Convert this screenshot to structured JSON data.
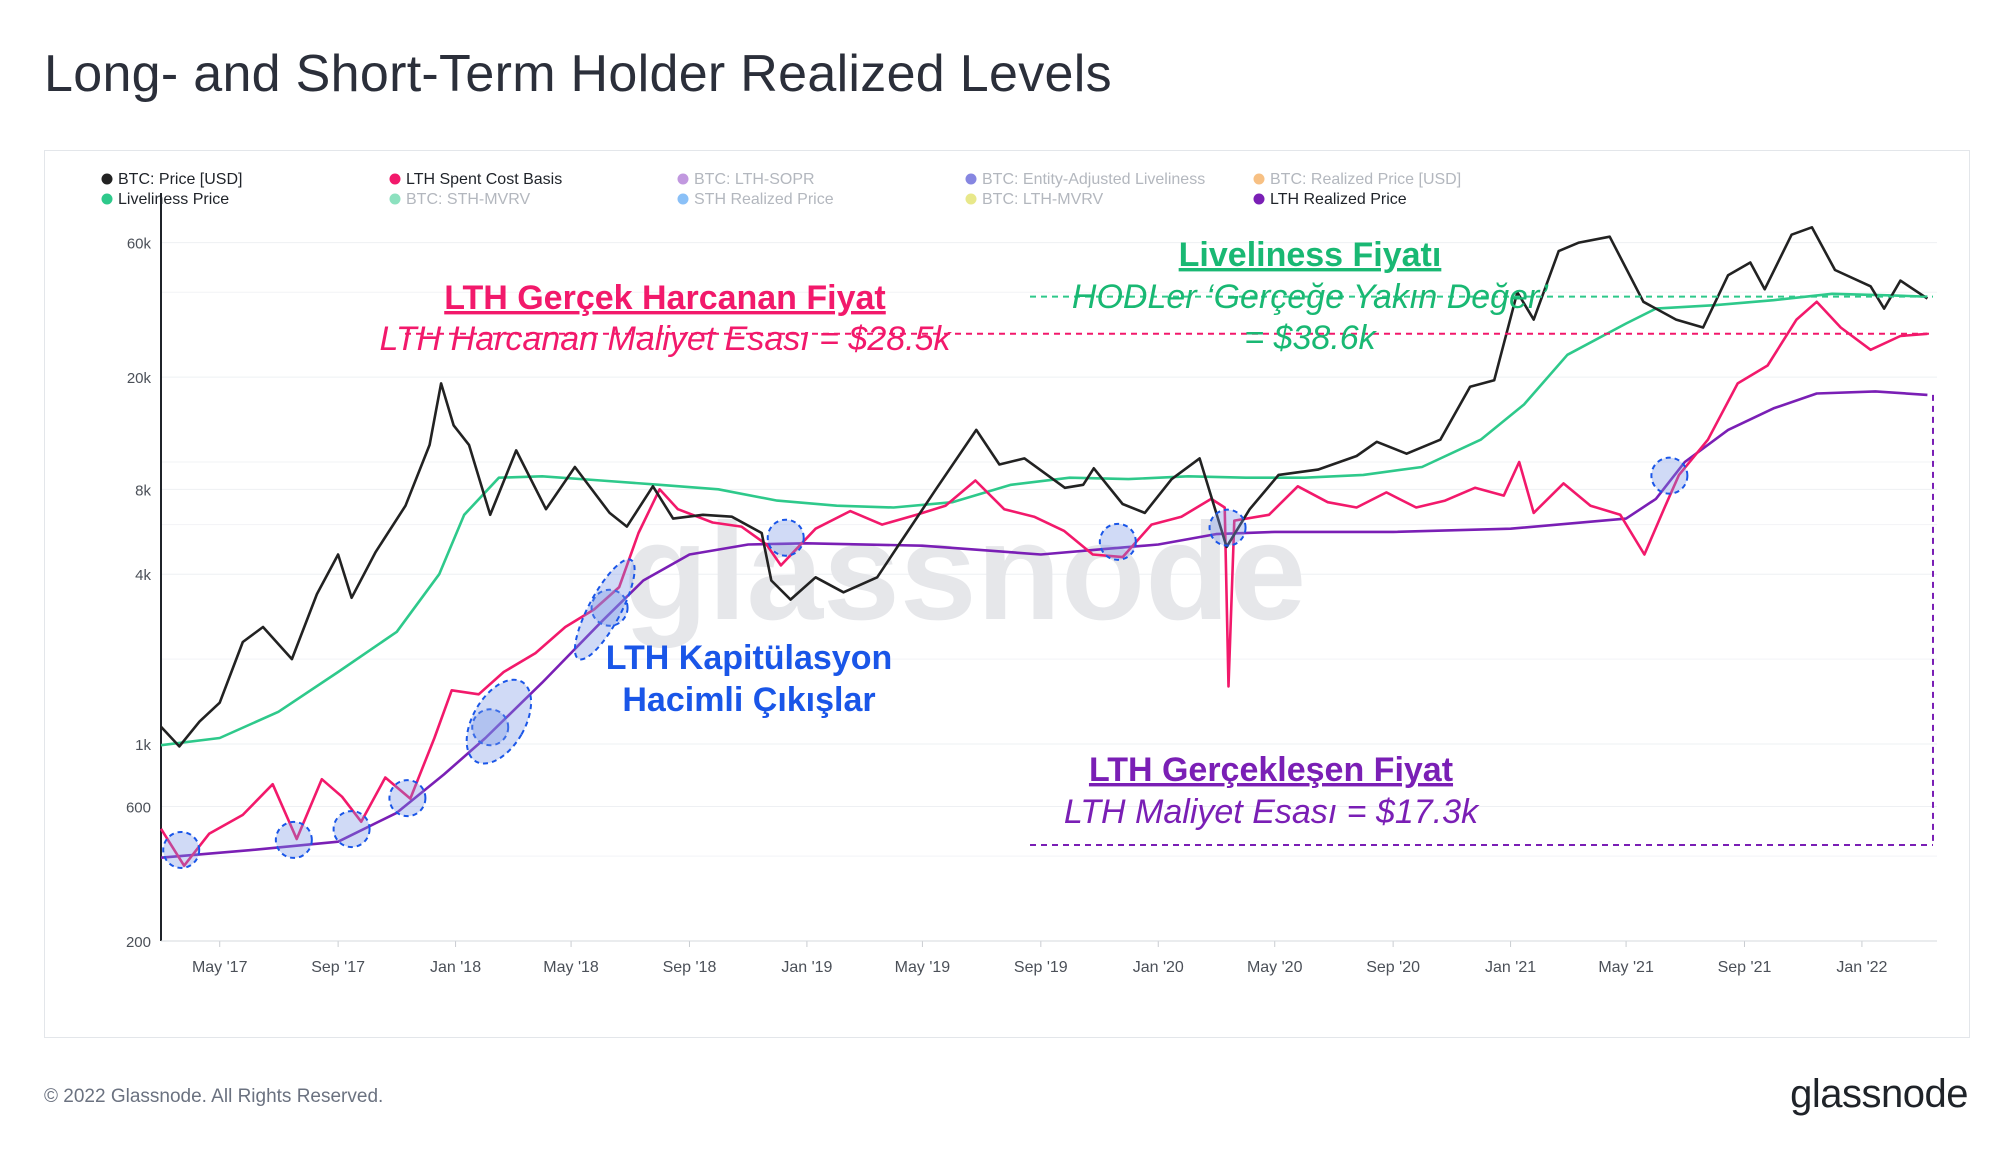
{
  "title": "Long- and Short-Term Holder Realized Levels",
  "footer": "© 2022 Glassnode. All Rights Reserved.",
  "brand": "glassnode",
  "watermark": "glassnode",
  "legend": [
    {
      "label": "BTC: Price [USD]",
      "color": "#222222",
      "active": true
    },
    {
      "label": "LTH Spent Cost Basis",
      "color": "#f2196b",
      "active": true
    },
    {
      "label": "BTC: LTH-SOPR",
      "color": "#8e44c4",
      "active": false
    },
    {
      "label": "BTC: Entity-Adjusted Liveliness",
      "color": "#2323c8",
      "active": false
    },
    {
      "label": "BTC: Realized Price [USD]",
      "color": "#f08c1e",
      "active": false
    },
    {
      "label": "Liveliness Price",
      "color": "#2ec98b",
      "active": true
    },
    {
      "label": "BTC: STH-MVRV",
      "color": "#2ec98b",
      "active": false
    },
    {
      "label": "STH Realized Price",
      "color": "#2a8cf0",
      "active": false
    },
    {
      "label": "BTC: LTH-MVRV",
      "color": "#d6d62a",
      "active": false
    },
    {
      "label": "LTH Realized Price",
      "color": "#7a1fb5",
      "active": true
    }
  ],
  "annotations": {
    "lth_spent_title": "LTH Gerçek Harcanan Fiyat",
    "lth_spent_sub": "LTH Harcanan Maliyet Esası = $28.5k",
    "liveliness_title": "Liveliness Fiyatı",
    "liveliness_sub1": "HODLer ‘Gerçeğe Yakın Değer’",
    "liveliness_sub2": "= $38.6k",
    "capitulation_line1": "LTH Kapitülasyon",
    "capitulation_line2": "Hacimli Çıkışlar",
    "lth_realized_title": "LTH Gerçekleşen Fiyat",
    "lth_realized_sub": "LTH Maliyet Esası = $17.3k"
  },
  "colors": {
    "price": "#222222",
    "lth_spent": "#f2196b",
    "liveliness": "#2ec98b",
    "lth_realized": "#7a1fb5",
    "capitulation": "#1a56e8",
    "annotation_green": "#19b873"
  },
  "chart_data": {
    "type": "line",
    "y_scale": "log",
    "ylim": [
      200,
      90000
    ],
    "xlim": [
      "2017-03-01",
      "2022-03-20"
    ],
    "y_ticks": [
      {
        "value": 200,
        "label": "200"
      },
      {
        "value": 600,
        "label": "600"
      },
      {
        "value": 1000,
        "label": "1k"
      },
      {
        "value": 4000,
        "label": "4k"
      },
      {
        "value": 8000,
        "label": "8k"
      },
      {
        "value": 20000,
        "label": "20k"
      },
      {
        "value": 60000,
        "label": "60k"
      }
    ],
    "x_ticks": [
      {
        "date": "2017-05-01",
        "label": "May '17"
      },
      {
        "date": "2017-09-01",
        "label": "Sep '17"
      },
      {
        "date": "2018-01-01",
        "label": "Jan '18"
      },
      {
        "date": "2018-05-01",
        "label": "May '18"
      },
      {
        "date": "2018-09-01",
        "label": "Sep '18"
      },
      {
        "date": "2019-01-01",
        "label": "Jan '19"
      },
      {
        "date": "2019-05-01",
        "label": "May '19"
      },
      {
        "date": "2019-09-01",
        "label": "Sep '19"
      },
      {
        "date": "2020-01-01",
        "label": "Jan '20"
      },
      {
        "date": "2020-05-01",
        "label": "May '20"
      },
      {
        "date": "2020-09-01",
        "label": "Sep '20"
      },
      {
        "date": "2021-01-01",
        "label": "Jan '21"
      },
      {
        "date": "2021-05-01",
        "label": "May '21"
      },
      {
        "date": "2021-09-01",
        "label": "Sep '21"
      },
      {
        "date": "2022-01-01",
        "label": "Jan '22"
      }
    ],
    "series": [
      {
        "name": "BTC: Price [USD]",
        "key": "price",
        "points": [
          [
            "2017-03-01",
            1150
          ],
          [
            "2017-03-20",
            980
          ],
          [
            "2017-04-10",
            1200
          ],
          [
            "2017-05-01",
            1400
          ],
          [
            "2017-05-25",
            2300
          ],
          [
            "2017-06-15",
            2600
          ],
          [
            "2017-07-15",
            2000
          ],
          [
            "2017-08-10",
            3400
          ],
          [
            "2017-09-01",
            4700
          ],
          [
            "2017-09-15",
            3300
          ],
          [
            "2017-10-10",
            4800
          ],
          [
            "2017-11-10",
            7000
          ],
          [
            "2017-12-05",
            11500
          ],
          [
            "2017-12-17",
            19000
          ],
          [
            "2017-12-30",
            13500
          ],
          [
            "2018-01-15",
            11500
          ],
          [
            "2018-02-06",
            6500
          ],
          [
            "2018-03-05",
            11000
          ],
          [
            "2018-04-05",
            6800
          ],
          [
            "2018-05-05",
            9600
          ],
          [
            "2018-06-10",
            6600
          ],
          [
            "2018-06-28",
            5900
          ],
          [
            "2018-07-25",
            8200
          ],
          [
            "2018-08-15",
            6300
          ],
          [
            "2018-09-15",
            6500
          ],
          [
            "2018-10-15",
            6400
          ],
          [
            "2018-11-15",
            5600
          ],
          [
            "2018-11-25",
            3800
          ],
          [
            "2018-12-15",
            3250
          ],
          [
            "2019-01-10",
            3900
          ],
          [
            "2019-02-08",
            3450
          ],
          [
            "2019-03-15",
            3900
          ],
          [
            "2019-04-05",
            5000
          ],
          [
            "2019-05-15",
            8000
          ],
          [
            "2019-06-26",
            13000
          ],
          [
            "2019-07-20",
            9800
          ],
          [
            "2019-08-15",
            10300
          ],
          [
            "2019-09-26",
            8100
          ],
          [
            "2019-10-15",
            8300
          ],
          [
            "2019-10-26",
            9500
          ],
          [
            "2019-11-25",
            7100
          ],
          [
            "2019-12-18",
            6600
          ],
          [
            "2020-01-15",
            8700
          ],
          [
            "2020-02-13",
            10300
          ],
          [
            "2020-03-12",
            5000
          ],
          [
            "2020-04-05",
            6800
          ],
          [
            "2020-05-05",
            9000
          ],
          [
            "2020-06-15",
            9400
          ],
          [
            "2020-07-25",
            10500
          ],
          [
            "2020-08-15",
            11800
          ],
          [
            "2020-09-15",
            10700
          ],
          [
            "2020-10-20",
            12000
          ],
          [
            "2020-11-20",
            18500
          ],
          [
            "2020-12-15",
            19500
          ],
          [
            "2021-01-08",
            40000
          ],
          [
            "2021-01-25",
            32000
          ],
          [
            "2021-02-20",
            56000
          ],
          [
            "2021-03-13",
            60000
          ],
          [
            "2021-04-14",
            63000
          ],
          [
            "2021-05-19",
            37000
          ],
          [
            "2021-06-22",
            32000
          ],
          [
            "2021-07-20",
            30000
          ],
          [
            "2021-08-15",
            46000
          ],
          [
            "2021-09-07",
            51000
          ],
          [
            "2021-09-22",
            41000
          ],
          [
            "2021-10-20",
            64000
          ],
          [
            "2021-11-10",
            68000
          ],
          [
            "2021-12-04",
            48000
          ],
          [
            "2022-01-10",
            42000
          ],
          [
            "2022-01-24",
            35000
          ],
          [
            "2022-02-10",
            44000
          ],
          [
            "2022-03-10",
            38000
          ]
        ]
      },
      {
        "name": "LTH Spent Cost Basis",
        "key": "lth_spent",
        "points": [
          [
            "2017-03-01",
            500
          ],
          [
            "2017-03-25",
            370
          ],
          [
            "2017-04-20",
            480
          ],
          [
            "2017-05-25",
            560
          ],
          [
            "2017-06-25",
            720
          ],
          [
            "2017-07-20",
            460
          ],
          [
            "2017-08-15",
            750
          ],
          [
            "2017-09-05",
            650
          ],
          [
            "2017-09-25",
            530
          ],
          [
            "2017-10-20",
            760
          ],
          [
            "2017-11-15",
            640
          ],
          [
            "2017-12-10",
            1050
          ],
          [
            "2017-12-28",
            1550
          ],
          [
            "2018-01-25",
            1500
          ],
          [
            "2018-02-20",
            1800
          ],
          [
            "2018-03-25",
            2100
          ],
          [
            "2018-04-25",
            2600
          ],
          [
            "2018-05-25",
            3000
          ],
          [
            "2018-06-20",
            3600
          ],
          [
            "2018-07-10",
            5600
          ],
          [
            "2018-08-01",
            8000
          ],
          [
            "2018-08-20",
            6800
          ],
          [
            "2018-09-25",
            6100
          ],
          [
            "2018-10-25",
            5900
          ],
          [
            "2018-11-20",
            5100
          ],
          [
            "2018-12-05",
            4300
          ],
          [
            "2019-01-10",
            5800
          ],
          [
            "2019-02-15",
            6700
          ],
          [
            "2019-03-20",
            6000
          ],
          [
            "2019-04-25",
            6500
          ],
          [
            "2019-05-25",
            7000
          ],
          [
            "2019-06-25",
            8600
          ],
          [
            "2019-07-25",
            6800
          ],
          [
            "2019-08-25",
            6400
          ],
          [
            "2019-09-25",
            5700
          ],
          [
            "2019-10-25",
            4700
          ],
          [
            "2019-11-25",
            4600
          ],
          [
            "2019-12-25",
            6000
          ],
          [
            "2020-01-25",
            6400
          ],
          [
            "2020-02-25",
            7400
          ],
          [
            "2020-03-10",
            6900
          ],
          [
            "2020-03-14",
            1600
          ],
          [
            "2020-03-20",
            6200
          ],
          [
            "2020-04-25",
            6500
          ],
          [
            "2020-05-25",
            8200
          ],
          [
            "2020-06-25",
            7200
          ],
          [
            "2020-07-25",
            6900
          ],
          [
            "2020-08-25",
            7800
          ],
          [
            "2020-09-25",
            6900
          ],
          [
            "2020-10-25",
            7300
          ],
          [
            "2020-11-25",
            8100
          ],
          [
            "2020-12-25",
            7600
          ],
          [
            "2021-01-10",
            10000
          ],
          [
            "2021-01-25",
            6600
          ],
          [
            "2021-02-25",
            8400
          ],
          [
            "2021-03-25",
            7000
          ],
          [
            "2021-04-25",
            6500
          ],
          [
            "2021-05-20",
            4700
          ],
          [
            "2021-06-10",
            6900
          ],
          [
            "2021-06-25",
            9000
          ],
          [
            "2021-07-25",
            12000
          ],
          [
            "2021-08-25",
            19000
          ],
          [
            "2021-09-25",
            22000
          ],
          [
            "2021-10-25",
            32000
          ],
          [
            "2021-11-15",
            37000
          ],
          [
            "2021-12-10",
            30000
          ],
          [
            "2022-01-10",
            25000
          ],
          [
            "2022-02-10",
            28000
          ],
          [
            "2022-03-10",
            28500
          ]
        ]
      },
      {
        "name": "Liveliness Price",
        "key": "liveliness",
        "points": [
          [
            "2017-03-01",
            990
          ],
          [
            "2017-05-01",
            1050
          ],
          [
            "2017-07-01",
            1300
          ],
          [
            "2017-09-01",
            1800
          ],
          [
            "2017-11-01",
            2500
          ],
          [
            "2017-12-15",
            4000
          ],
          [
            "2018-01-10",
            6500
          ],
          [
            "2018-02-15",
            8800
          ],
          [
            "2018-04-01",
            8900
          ],
          [
            "2018-06-01",
            8600
          ],
          [
            "2018-08-01",
            8300
          ],
          [
            "2018-10-01",
            8000
          ],
          [
            "2018-12-01",
            7300
          ],
          [
            "2019-02-01",
            7000
          ],
          [
            "2019-04-01",
            6900
          ],
          [
            "2019-06-01",
            7200
          ],
          [
            "2019-08-01",
            8300
          ],
          [
            "2019-10-01",
            8800
          ],
          [
            "2019-12-01",
            8700
          ],
          [
            "2020-02-01",
            8900
          ],
          [
            "2020-04-01",
            8800
          ],
          [
            "2020-06-01",
            8800
          ],
          [
            "2020-08-01",
            9000
          ],
          [
            "2020-10-01",
            9600
          ],
          [
            "2020-12-01",
            12000
          ],
          [
            "2021-01-15",
            16000
          ],
          [
            "2021-03-01",
            24000
          ],
          [
            "2021-05-01",
            31000
          ],
          [
            "2021-06-01",
            35000
          ],
          [
            "2021-08-01",
            36000
          ],
          [
            "2021-10-01",
            37500
          ],
          [
            "2021-12-01",
            39500
          ],
          [
            "2022-02-01",
            39000
          ],
          [
            "2022-03-10",
            38600
          ]
        ]
      },
      {
        "name": "LTH Realized Price",
        "key": "lth_realized",
        "points": [
          [
            "2017-03-01",
            395
          ],
          [
            "2017-06-01",
            420
          ],
          [
            "2017-09-01",
            450
          ],
          [
            "2017-11-01",
            570
          ],
          [
            "2017-12-20",
            780
          ],
          [
            "2018-02-01",
            1050
          ],
          [
            "2018-04-01",
            1650
          ],
          [
            "2018-06-01",
            2700
          ],
          [
            "2018-07-15",
            3800
          ],
          [
            "2018-09-01",
            4700
          ],
          [
            "2018-11-01",
            5100
          ],
          [
            "2019-01-01",
            5150
          ],
          [
            "2019-05-01",
            5050
          ],
          [
            "2019-09-01",
            4700
          ],
          [
            "2019-11-01",
            4900
          ],
          [
            "2020-01-01",
            5100
          ],
          [
            "2020-03-01",
            5550
          ],
          [
            "2020-05-01",
            5650
          ],
          [
            "2020-09-01",
            5650
          ],
          [
            "2021-01-01",
            5800
          ],
          [
            "2021-05-01",
            6300
          ],
          [
            "2021-06-01",
            7400
          ],
          [
            "2021-07-01",
            10000
          ],
          [
            "2021-08-15",
            13000
          ],
          [
            "2021-10-01",
            15500
          ],
          [
            "2021-11-15",
            17500
          ],
          [
            "2022-01-15",
            17800
          ],
          [
            "2022-03-10",
            17300
          ]
        ]
      }
    ],
    "reference_levels": [
      {
        "name": "LTH Spent Cost Basis",
        "value": 28500
      },
      {
        "name": "Liveliness Price",
        "value": 38600
      },
      {
        "name": "LTH Realized Price",
        "value": 17300
      }
    ],
    "capitulation_events": [
      "2017-03-22",
      "2017-07-17",
      "2017-09-15",
      "2017-11-12",
      "2018-02-06",
      "2018-06-10",
      "2018-12-10",
      "2019-11-20",
      "2020-03-13",
      "2021-06-15"
    ],
    "grid": true,
    "legend_placement": "top-left"
  }
}
